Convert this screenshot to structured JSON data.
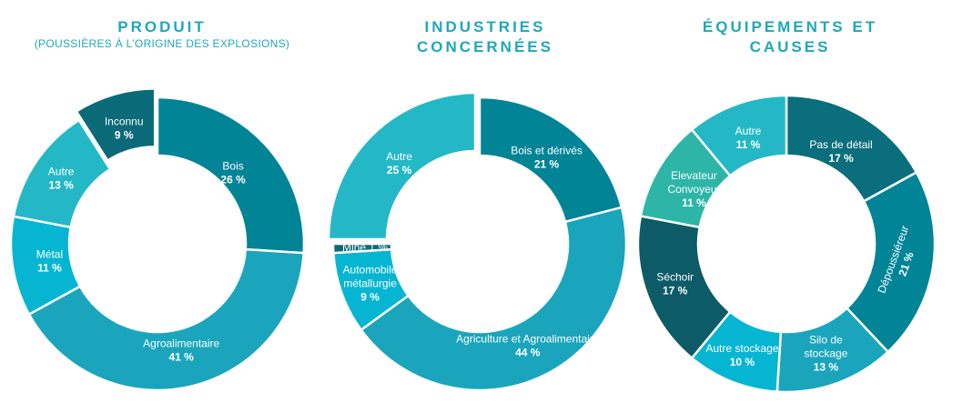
{
  "chart_data": [
    {
      "type": "pie",
      "title": "PRODUIT",
      "subtitle": "(POUSSIÈRES À L’ORIGINE DES EXPLOSIONS)",
      "slices": [
        {
          "label": "Bois",
          "value": 26,
          "value_label": "26 %",
          "color": "#028497"
        },
        {
          "label": "Agroalimentaire",
          "value": 41,
          "value_label": "41 %",
          "color": "#1aa5bd"
        },
        {
          "label": "Métal",
          "value": 11,
          "value_label": "11 %",
          "color": "#06b5d2"
        },
        {
          "label": "Autre",
          "value": 13,
          "value_label": "13 %",
          "color": "#24b8c6"
        },
        {
          "label": "Inconnu",
          "value": 9,
          "value_label": "9 %",
          "color": "#0a6a78"
        }
      ]
    },
    {
      "type": "pie",
      "title": "INDUSTRIES CONCERNÉES",
      "slices": [
        {
          "label": "Bois et dérivés",
          "value": 21,
          "value_label": "21 %",
          "color": "#028497"
        },
        {
          "label": "Agriculture et Agroalimentaire",
          "value": 44,
          "value_label": "44 %",
          "color": "#1aa5bd"
        },
        {
          "label": "Automobile métallurgie",
          "value": 9,
          "value_label": "9 %",
          "color": "#06b5d2"
        },
        {
          "label": "Mine",
          "value": 1,
          "value_label": "1 %",
          "color": "#0a6a78"
        },
        {
          "label": "Autre",
          "value": 25,
          "value_label": "25 %",
          "color": "#24b8c6"
        }
      ]
    },
    {
      "type": "pie",
      "title": "ÉQUIPEMENTS ET CAUSES",
      "slices": [
        {
          "label": "Pas de détail",
          "value": 17,
          "value_label": "17 %",
          "color": "#0a6e7c"
        },
        {
          "label": "Dépoussiéreur",
          "value": 21,
          "value_label": "21 %",
          "color": "#028497"
        },
        {
          "label": "Silo de stockage",
          "value": 13,
          "value_label": "13 %",
          "color": "#1aa5bd"
        },
        {
          "label": "Autre stockage",
          "value": 10,
          "value_label": "10 %",
          "color": "#06b5d2"
        },
        {
          "label": "Séchoir",
          "value": 17,
          "value_label": "17 %",
          "color": "#0d5b66"
        },
        {
          "label": "Elevateur Convoyeur",
          "value": 11,
          "value_label": "11 %",
          "color": "#2db5a8"
        },
        {
          "label": "Autre",
          "value": 11,
          "value_label": "11 %",
          "color": "#24b8c6"
        }
      ]
    }
  ]
}
